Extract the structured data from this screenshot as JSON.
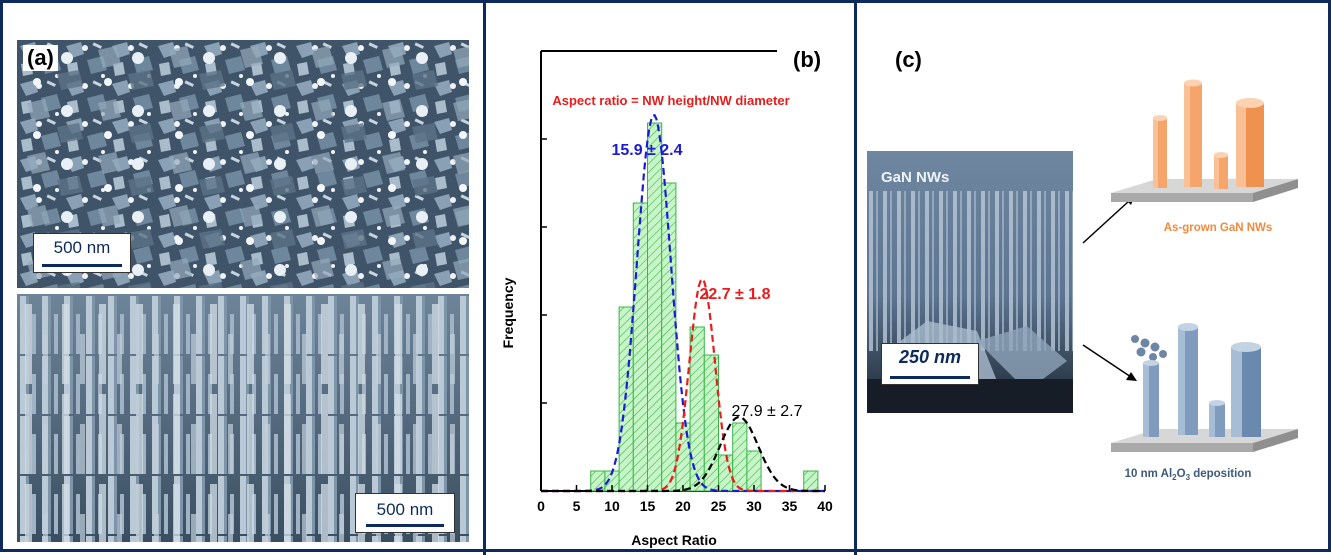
{
  "panel_a": {
    "label": "(a)",
    "top_image": {
      "scale_bar": "500 nm"
    },
    "bottom_image": {
      "scale_bar": "500 nm"
    }
  },
  "panel_b": {
    "label": "(b)",
    "annotation": "Aspect ratio = NW height/NW diameter",
    "peak_labels": [
      {
        "text": "15.9 ± 2.4",
        "color": "#1b1bd6"
      },
      {
        "text": "22.7 ± 1.8",
        "color": "#e81c1c"
      },
      {
        "text": "27.9 ± 2.7",
        "color": "#000000"
      }
    ]
  },
  "panel_c": {
    "label": "(c)",
    "sem_title": "GaN NWs",
    "scale_bar": "250 nm",
    "top_caption": "As-grown GaN NWs",
    "bottom_caption_main": "10 nm Al",
    "bottom_caption_sub1": "2",
    "bottom_caption_mid": "O",
    "bottom_caption_sub2": "3",
    "bottom_caption_tail": " deposition",
    "colors": {
      "asgrown": "#f5a46b",
      "coated": "#7f9cbf",
      "substrate": "#bdbdbd",
      "caption_orange": "#f28a3c",
      "caption_blue": "#3e5a7a"
    }
  },
  "chart_data": {
    "type": "bar",
    "title": "",
    "xlabel": "Aspect Ratio",
    "ylabel": "Frequency",
    "xlim": [
      0,
      40
    ],
    "xticks": [
      0,
      5,
      10,
      15,
      20,
      25,
      30,
      35,
      40
    ],
    "bin_width": 2,
    "histogram": {
      "bin_centers": [
        8,
        10,
        12,
        14,
        16,
        18,
        20,
        22,
        24,
        26,
        28,
        30,
        32,
        34,
        36,
        38
      ],
      "heights": [
        0.5,
        0.5,
        4.6,
        7.2,
        9.2,
        7.7,
        1.7,
        4.1,
        3.4,
        0.9,
        1.7,
        1.0,
        0,
        0,
        0,
        0.5
      ]
    },
    "fits": [
      {
        "label": "15.9 ± 2.4",
        "center": 15.9,
        "sigma": 2.4,
        "amplitude": 9.4,
        "color": "#1b1bd6"
      },
      {
        "label": "22.7 ± 1.8",
        "center": 22.7,
        "sigma": 1.8,
        "amplitude": 5.3,
        "color": "#e81c1c"
      },
      {
        "label": "27.9 ± 2.7",
        "center": 27.9,
        "sigma": 2.7,
        "amplitude": 1.85,
        "color": "#000000"
      }
    ],
    "ymax": 11,
    "hist_fill": "#c7f5c7",
    "hist_edge": "#3bb54a"
  }
}
